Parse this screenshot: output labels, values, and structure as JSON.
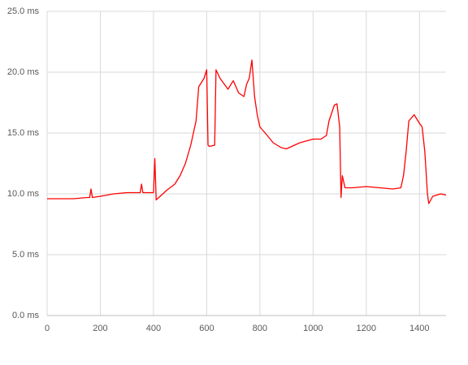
{
  "chart_data": {
    "type": "line",
    "xlim": [
      0,
      1500
    ],
    "xticks": [
      0,
      200,
      400,
      600,
      800,
      1000,
      1200,
      1400
    ],
    "ylim": [
      0,
      25
    ],
    "yticks": [
      {
        "value": 0,
        "label": "0.0 ms"
      },
      {
        "value": 5,
        "label": "5.0 ms"
      },
      {
        "value": 10,
        "label": "10.0 ms"
      },
      {
        "value": 15,
        "label": "15.0 ms"
      },
      {
        "value": 20,
        "label": "20.0 ms"
      },
      {
        "value": 25,
        "label": "25.0 ms"
      }
    ],
    "grid": true,
    "series": [
      {
        "color": "#ff0000",
        "x": [
          0,
          50,
          100,
          150,
          160,
          165,
          170,
          200,
          250,
          300,
          350,
          355,
          360,
          400,
          405,
          410,
          450,
          480,
          500,
          520,
          540,
          560,
          570,
          590,
          600,
          605,
          610,
          630,
          635,
          650,
          680,
          700,
          720,
          740,
          750,
          760,
          770,
          780,
          790,
          800,
          820,
          850,
          880,
          900,
          920,
          950,
          1000,
          1030,
          1050,
          1060,
          1080,
          1090,
          1100,
          1105,
          1110,
          1120,
          1150,
          1200,
          1250,
          1300,
          1330,
          1340,
          1350,
          1360,
          1380,
          1400,
          1410,
          1420,
          1430,
          1435,
          1450,
          1480,
          1500
        ],
        "values": [
          9.6,
          9.6,
          9.6,
          9.7,
          9.7,
          10.4,
          9.7,
          9.8,
          10.0,
          10.1,
          10.1,
          10.8,
          10.1,
          10.1,
          12.9,
          9.5,
          10.3,
          10.8,
          11.5,
          12.5,
          14.0,
          16.0,
          18.8,
          19.5,
          20.2,
          14.0,
          13.9,
          14.0,
          20.2,
          19.5,
          18.6,
          19.3,
          18.3,
          18.0,
          19.0,
          19.5,
          21.0,
          18.0,
          16.5,
          15.5,
          15.0,
          14.2,
          13.8,
          13.7,
          13.9,
          14.2,
          14.5,
          14.5,
          14.8,
          16.0,
          17.3,
          17.4,
          15.5,
          9.7,
          11.5,
          10.5,
          10.5,
          10.6,
          10.5,
          10.4,
          10.5,
          11.5,
          13.5,
          16.0,
          16.5,
          15.8,
          15.5,
          13.5,
          10.0,
          9.2,
          9.8,
          10.0,
          9.9
        ]
      }
    ]
  }
}
